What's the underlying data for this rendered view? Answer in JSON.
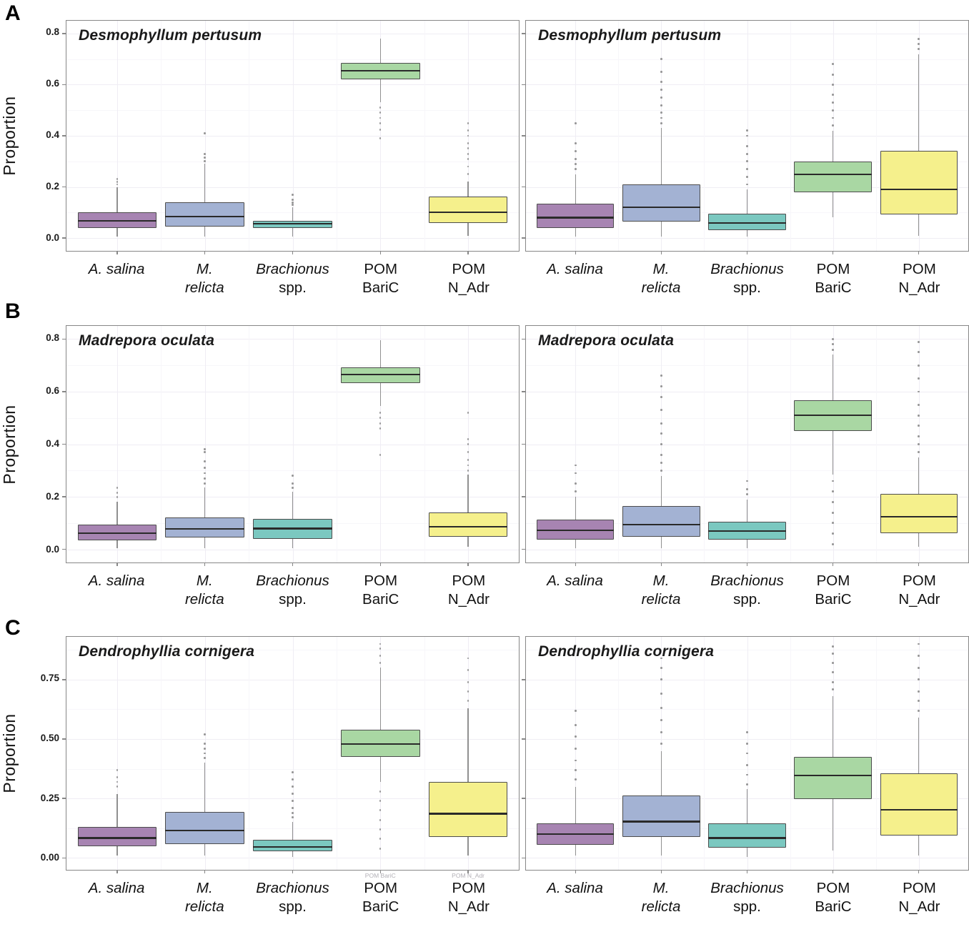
{
  "chart_data": {
    "type": "boxplot",
    "ylabel": "Proportion",
    "grid": true,
    "legend": "none",
    "categories": [
      {
        "lines": [
          {
            "text": "A. salina",
            "italic": true
          }
        ]
      },
      {
        "lines": [
          {
            "text": "M.",
            "italic": true
          },
          {
            "text": "relicta",
            "italic": true
          }
        ]
      },
      {
        "lines": [
          {
            "text": "Brachionus",
            "italic": true
          },
          {
            "text": "spp.",
            "italic": false
          }
        ]
      },
      {
        "lines": [
          {
            "text": "POM",
            "italic": false
          },
          {
            "text": "BariC",
            "italic": false
          }
        ]
      },
      {
        "lines": [
          {
            "text": "POM",
            "italic": false
          },
          {
            "text": "N_Adr",
            "italic": false
          }
        ]
      }
    ],
    "box_colors": [
      "#a784b2",
      "#a3b2d3",
      "#7bc8c0",
      "#a9d7a3",
      "#f5f08c"
    ],
    "style": {
      "box_border": "#4d4d4d",
      "median": "#2a2a2a",
      "whisker": "#909090",
      "outlier": "#8e8e8e",
      "panel_border": "#878787",
      "grid_major": "#efedf4",
      "grid_minor": "#f7f6fa"
    },
    "rows": [
      {
        "letter": "A",
        "ticks": [
          0,
          0.2,
          0.4,
          0.6,
          0.8
        ],
        "tick_labels": [
          "0.0",
          "0.2",
          "0.4",
          "0.6",
          "0.8"
        ],
        "ylim": [
          -0.05,
          0.85
        ],
        "panels": [
          {
            "title": "Desmophyllum pertusum",
            "boxes": [
              {
                "whislo": 0.005,
                "q1": 0.04,
                "med": 0.068,
                "q3": 0.1,
                "whishi": 0.2,
                "outliers": [
                  0.21,
                  0.22,
                  0.23
                ]
              },
              {
                "whislo": 0.005,
                "q1": 0.046,
                "med": 0.085,
                "q3": 0.14,
                "whishi": 0.29,
                "outliers": [
                  0.3,
                  0.315,
                  0.33,
                  0.41
                ]
              },
              {
                "whislo": 0.005,
                "q1": 0.04,
                "med": 0.056,
                "q3": 0.066,
                "whishi": 0.12,
                "outliers": [
                  0.13,
                  0.14,
                  0.15,
                  0.17
                ]
              },
              {
                "whislo": 0.53,
                "q1": 0.62,
                "med": 0.655,
                "q3": 0.685,
                "whishi": 0.78,
                "outliers": [
                  0.39,
                  0.425,
                  0.45,
                  0.47,
                  0.49,
                  0.51
                ]
              },
              {
                "whislo": 0.01,
                "q1": 0.058,
                "med": 0.1,
                "q3": 0.163,
                "whishi": 0.22,
                "outliers": [
                  0.25,
                  0.28,
                  0.31,
                  0.33,
                  0.35,
                  0.37,
                  0.4,
                  0.42,
                  0.45
                ]
              }
            ]
          },
          {
            "title": "Desmophyllum pertusum",
            "boxes": [
              {
                "whislo": 0.005,
                "q1": 0.04,
                "med": 0.08,
                "q3": 0.135,
                "whishi": 0.25,
                "outliers": [
                  0.27,
                  0.29,
                  0.31,
                  0.34,
                  0.37,
                  0.45
                ]
              },
              {
                "whislo": 0.005,
                "q1": 0.065,
                "med": 0.12,
                "q3": 0.21,
                "whishi": 0.43,
                "outliers": [
                  0.45,
                  0.47,
                  0.49,
                  0.52,
                  0.55,
                  0.58,
                  0.61,
                  0.65,
                  0.7
                ]
              },
              {
                "whislo": 0.005,
                "q1": 0.03,
                "med": 0.058,
                "q3": 0.095,
                "whishi": 0.19,
                "outliers": [
                  0.21,
                  0.24,
                  0.27,
                  0.3,
                  0.33,
                  0.36,
                  0.4,
                  0.42
                ]
              },
              {
                "whislo": 0.08,
                "q1": 0.178,
                "med": 0.25,
                "q3": 0.3,
                "whishi": 0.42,
                "outliers": [
                  0.44,
                  0.47,
                  0.5,
                  0.53,
                  0.56,
                  0.6,
                  0.64,
                  0.68
                ]
              },
              {
                "whislo": 0.01,
                "q1": 0.093,
                "med": 0.19,
                "q3": 0.34,
                "whishi": 0.72,
                "outliers": [
                  0.74,
                  0.76,
                  0.78
                ]
              }
            ]
          }
        ]
      },
      {
        "letter": "B",
        "ticks": [
          0,
          0.2,
          0.4,
          0.6,
          0.8
        ],
        "tick_labels": [
          "0.0",
          "0.2",
          "0.4",
          "0.6",
          "0.8"
        ],
        "ylim": [
          -0.05,
          0.85
        ],
        "panels": [
          {
            "title": "Madrepora oculata",
            "boxes": [
              {
                "whislo": 0.005,
                "q1": 0.035,
                "med": 0.062,
                "q3": 0.093,
                "whishi": 0.18,
                "outliers": [
                  0.2,
                  0.215,
                  0.235
                ]
              },
              {
                "whislo": 0.005,
                "q1": 0.045,
                "med": 0.077,
                "q3": 0.12,
                "whishi": 0.235,
                "outliers": [
                  0.25,
                  0.27,
                  0.29,
                  0.31,
                  0.335,
                  0.37,
                  0.38
                ]
              },
              {
                "whislo": 0.005,
                "q1": 0.04,
                "med": 0.079,
                "q3": 0.115,
                "whishi": 0.22,
                "outliers": [
                  0.235,
                  0.25,
                  0.28
                ]
              },
              {
                "whislo": 0.545,
                "q1": 0.632,
                "med": 0.664,
                "q3": 0.692,
                "whishi": 0.795,
                "outliers": [
                  0.36,
                  0.46,
                  0.48,
                  0.5,
                  0.52
                ]
              },
              {
                "whislo": 0.01,
                "q1": 0.047,
                "med": 0.086,
                "q3": 0.14,
                "whishi": 0.285,
                "outliers": [
                  0.3,
                  0.32,
                  0.34,
                  0.37,
                  0.4,
                  0.42,
                  0.52
                ]
              }
            ]
          },
          {
            "title": "Madrepora oculata",
            "boxes": [
              {
                "whislo": 0.005,
                "q1": 0.036,
                "med": 0.073,
                "q3": 0.114,
                "whishi": 0.2,
                "outliers": [
                  0.22,
                  0.25,
                  0.29,
                  0.32
                ]
              },
              {
                "whislo": 0.005,
                "q1": 0.047,
                "med": 0.094,
                "q3": 0.166,
                "whishi": 0.28,
                "outliers": [
                  0.3,
                  0.33,
                  0.36,
                  0.4,
                  0.44,
                  0.48,
                  0.53,
                  0.58,
                  0.62,
                  0.66
                ]
              },
              {
                "whislo": 0.005,
                "q1": 0.036,
                "med": 0.07,
                "q3": 0.106,
                "whishi": 0.19,
                "outliers": [
                  0.21,
                  0.23,
                  0.26
                ]
              },
              {
                "whislo": 0.285,
                "q1": 0.449,
                "med": 0.509,
                "q3": 0.566,
                "whishi": 0.74,
                "outliers": [
                  0.76,
                  0.78,
                  0.8,
                  0.26,
                  0.22,
                  0.18,
                  0.14,
                  0.1,
                  0.06,
                  0.02
                ]
              },
              {
                "whislo": 0.01,
                "q1": 0.062,
                "med": 0.124,
                "q3": 0.21,
                "whishi": 0.35,
                "outliers": [
                  0.37,
                  0.4,
                  0.43,
                  0.47,
                  0.51,
                  0.55,
                  0.6,
                  0.65,
                  0.7,
                  0.75,
                  0.79
                ]
              }
            ]
          }
        ]
      },
      {
        "letter": "C",
        "ticks": [
          0,
          0.25,
          0.5,
          0.75
        ],
        "tick_labels": [
          "0.00",
          "0.25",
          "0.50",
          "0.75"
        ],
        "ylim": [
          -0.05,
          0.93
        ],
        "panels": [
          {
            "title": "Dendrophyllia cornigera",
            "ghost_labels": [
              {
                "text": "POM BariC",
                "cat": 3
              },
              {
                "text": "POM N_Adr",
                "cat": 4
              }
            ],
            "boxes": [
              {
                "whislo": 0.01,
                "q1": 0.049,
                "med": 0.084,
                "q3": 0.131,
                "whishi": 0.27,
                "outliers": [
                  0.3,
                  0.32,
                  0.34,
                  0.37
                ]
              },
              {
                "whislo": 0.01,
                "q1": 0.058,
                "med": 0.116,
                "q3": 0.195,
                "whishi": 0.4,
                "outliers": [
                  0.42,
                  0.44,
                  0.46,
                  0.48,
                  0.52
                ]
              },
              {
                "whislo": 0.005,
                "q1": 0.029,
                "med": 0.047,
                "q3": 0.076,
                "whishi": 0.15,
                "outliers": [
                  0.17,
                  0.19,
                  0.21,
                  0.24,
                  0.27,
                  0.3,
                  0.33,
                  0.36
                ]
              },
              {
                "whislo": 0.32,
                "q1": 0.424,
                "med": 0.48,
                "q3": 0.538,
                "whishi": 0.8,
                "outliers": [
                  0.82,
                  0.85,
                  0.88,
                  0.9,
                  0.28,
                  0.24,
                  0.2,
                  0.16,
                  0.12,
                  0.08,
                  0.04
                ]
              },
              {
                "whislo": 0.01,
                "q1": 0.087,
                "med": 0.186,
                "q3": 0.32,
                "whishi": 0.63,
                "outliers": [
                  0.66,
                  0.7,
                  0.74,
                  0.79,
                  0.84
                ]
              }
            ]
          },
          {
            "title": "Dendrophyllia cornigera",
            "boxes": [
              {
                "whislo": 0.01,
                "q1": 0.055,
                "med": 0.1,
                "q3": 0.145,
                "whishi": 0.3,
                "outliers": [
                  0.33,
                  0.37,
                  0.41,
                  0.46,
                  0.51,
                  0.56,
                  0.62
                ]
              },
              {
                "whislo": 0.01,
                "q1": 0.088,
                "med": 0.153,
                "q3": 0.263,
                "whishi": 0.45,
                "outliers": [
                  0.48,
                  0.53,
                  0.58,
                  0.63,
                  0.69,
                  0.75,
                  0.8,
                  0.84
                ]
              },
              {
                "whislo": 0.005,
                "q1": 0.044,
                "med": 0.084,
                "q3": 0.144,
                "whishi": 0.29,
                "outliers": [
                  0.31,
                  0.35,
                  0.39,
                  0.44,
                  0.48,
                  0.53
                ]
              },
              {
                "whislo": 0.03,
                "q1": 0.247,
                "med": 0.347,
                "q3": 0.425,
                "whishi": 0.68,
                "outliers": [
                  0.71,
                  0.74,
                  0.78,
                  0.82,
                  0.86,
                  0.89
                ]
              },
              {
                "whislo": 0.01,
                "q1": 0.094,
                "med": 0.203,
                "q3": 0.356,
                "whishi": 0.59,
                "outliers": [
                  0.62,
                  0.66,
                  0.7,
                  0.75,
                  0.8,
                  0.85,
                  0.9
                ]
              }
            ]
          }
        ]
      }
    ]
  }
}
